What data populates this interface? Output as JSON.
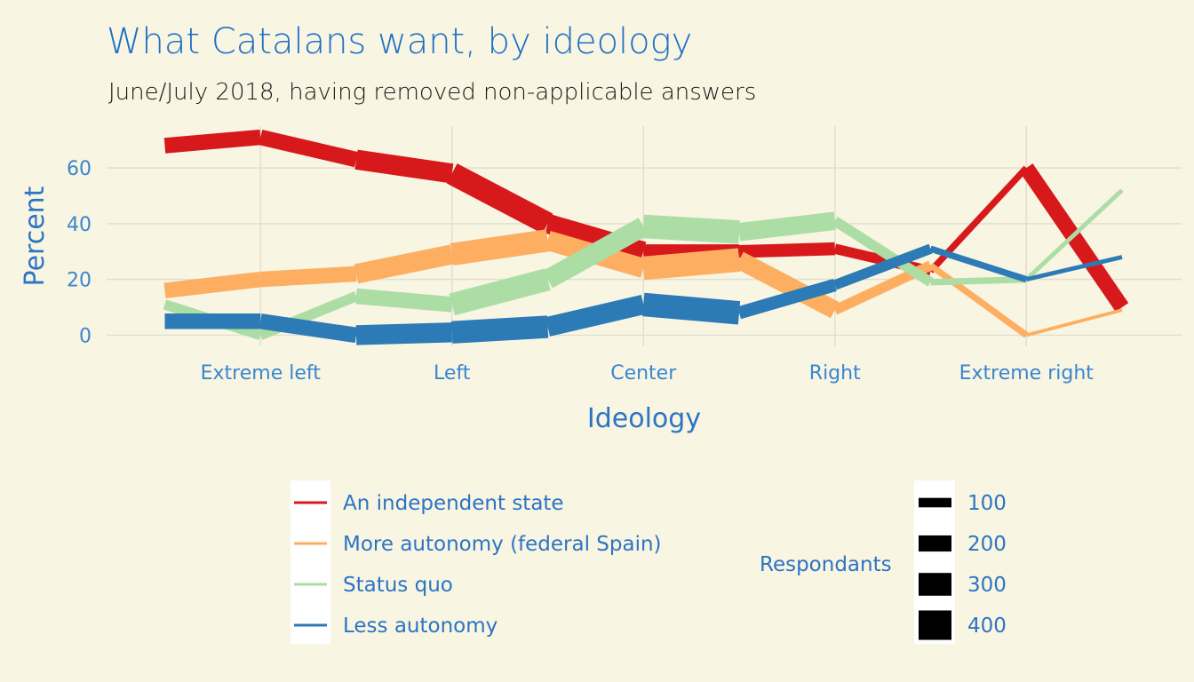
{
  "chart_data": {
    "type": "line",
    "title": "What Catalans want, by ideology",
    "subtitle": "June/July 2018, having removed non-applicable answers",
    "xlabel": "Ideology",
    "ylabel": "Percent",
    "categories": [
      "Extreme left",
      "Left",
      "Center",
      "Right",
      "Extreme right"
    ],
    "x": [
      0,
      0.5,
      1,
      1.5,
      2,
      2.5,
      3,
      3.5,
      4,
      4.5,
      5
    ],
    "ylim": [
      -4,
      75
    ],
    "yticks": [
      0,
      20,
      40,
      60
    ],
    "grid": true,
    "legend_position": "bottom",
    "series": [
      {
        "name": "An independent state",
        "color": "#d7191c",
        "values": [
          68,
          71,
          63,
          58,
          40,
          30,
          30,
          31,
          23,
          60,
          10
        ],
        "respondents": [
          250,
          250,
          330,
          380,
          330,
          230,
          200,
          150,
          80,
          250,
          40
        ]
      },
      {
        "name": "More autonomy (federal Spain)",
        "color": "#fdae61",
        "values": [
          16,
          20,
          22,
          29,
          34,
          24,
          27,
          9,
          25,
          0,
          9
        ],
        "respondents": [
          250,
          250,
          330,
          380,
          330,
          400,
          300,
          150,
          80,
          20,
          40
        ]
      },
      {
        "name": "Status quo",
        "color": "#abdda4",
        "values": [
          11,
          0,
          14,
          11,
          20,
          39,
          37,
          41,
          19,
          20,
          52
        ],
        "respondents": [
          150,
          150,
          250,
          380,
          330,
          400,
          300,
          150,
          80,
          40,
          40
        ]
      },
      {
        "name": "Less autonomy",
        "color": "#2c7bb6",
        "values": [
          5,
          5,
          0,
          1,
          3,
          11,
          8,
          18,
          31,
          20,
          28
        ],
        "respondents": [
          250,
          250,
          330,
          380,
          330,
          400,
          200,
          150,
          80,
          40,
          40
        ]
      }
    ],
    "size_legend": {
      "title": "Respondants",
      "values": [
        100,
        200,
        300,
        400
      ]
    }
  }
}
